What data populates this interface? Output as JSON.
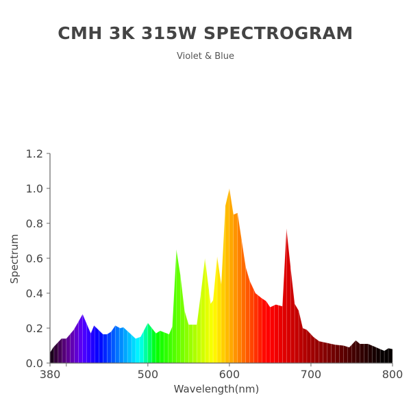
{
  "chart_data": {
    "type": "area",
    "title": "CMH 3K 315W SPECTROGRAM",
    "subtitle": "Violet & Blue",
    "xlabel": "Wavelength(nm)",
    "ylabel": "Spectrum",
    "xlim": [
      380,
      800
    ],
    "ylim": [
      0,
      1.2
    ],
    "x_ticks": [
      380,
      500,
      600,
      700,
      800
    ],
    "x_minor_ticks": [
      400
    ],
    "y_ticks": [
      "0.0",
      "0.2",
      "0.4",
      "0.6",
      "0.8",
      "1.0",
      "1.2"
    ],
    "grid": false,
    "x": [
      380,
      384,
      394,
      400,
      409,
      414,
      420,
      430,
      434,
      445,
      450,
      455,
      460,
      466,
      470,
      485,
      491,
      500,
      510,
      515,
      526,
      530,
      535,
      540,
      545,
      550,
      560,
      565,
      570,
      577,
      580,
      585,
      590,
      595,
      600,
      605,
      610,
      620,
      625,
      632,
      640,
      645,
      650,
      657,
      665,
      670,
      675,
      680,
      685,
      690,
      695,
      703,
      710,
      720,
      730,
      740,
      747,
      755,
      760,
      770,
      780,
      790,
      795,
      800
    ],
    "y": [
      0.06,
      0.09,
      0.14,
      0.14,
      0.19,
      0.23,
      0.28,
      0.17,
      0.215,
      0.165,
      0.165,
      0.18,
      0.215,
      0.2,
      0.205,
      0.14,
      0.15,
      0.23,
      0.17,
      0.185,
      0.165,
      0.21,
      0.65,
      0.5,
      0.3,
      0.22,
      0.22,
      0.4,
      0.6,
      0.34,
      0.36,
      0.61,
      0.45,
      0.9,
      1.0,
      0.85,
      0.86,
      0.55,
      0.47,
      0.4,
      0.37,
      0.355,
      0.32,
      0.335,
      0.325,
      0.77,
      0.55,
      0.34,
      0.3,
      0.2,
      0.19,
      0.15,
      0.125,
      0.115,
      0.105,
      0.1,
      0.09,
      0.13,
      0.11,
      0.11,
      0.09,
      0.07,
      0.085,
      0.08
    ]
  }
}
